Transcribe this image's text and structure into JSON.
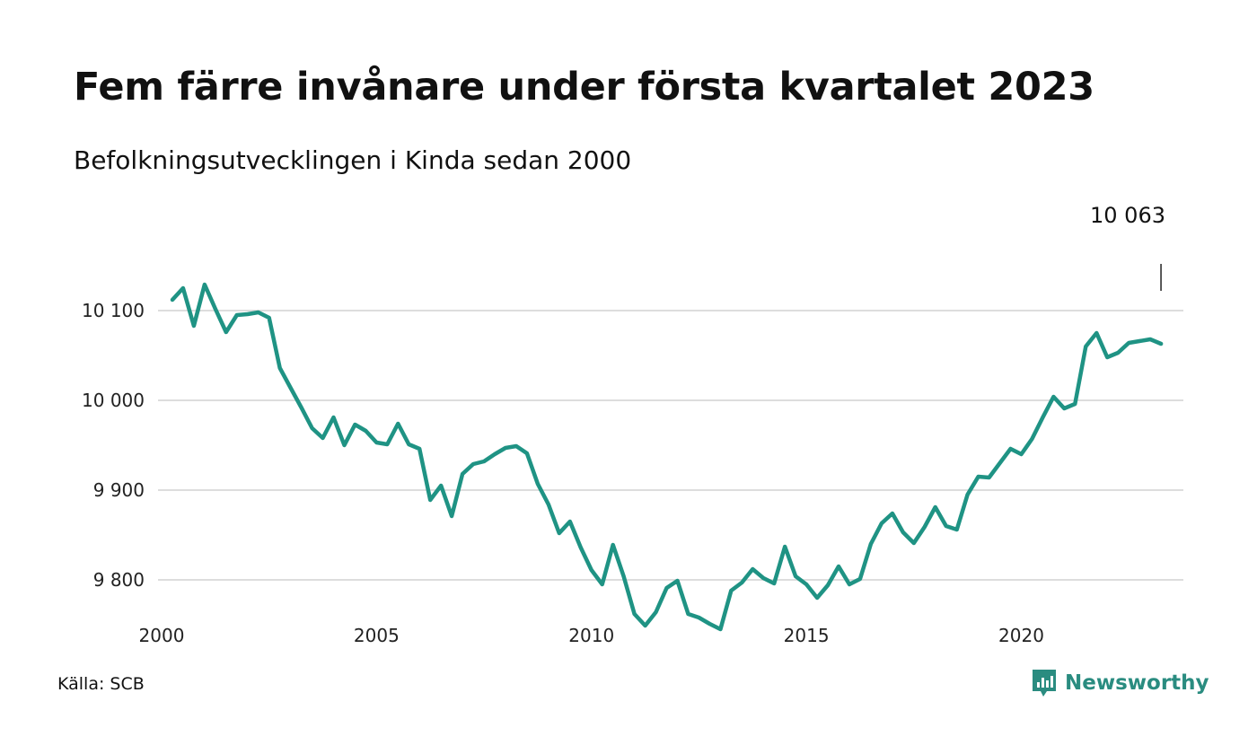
{
  "header": {
    "title": "Fem färre invånare under första kvartalet 2023",
    "subtitle": "Befolkningsutvecklingen i Kinda sedan 2000"
  },
  "footer": {
    "source": "Källa: SCB",
    "brand": "Newsworthy"
  },
  "colors": {
    "line": "#1f9384",
    "grid": "#dddddd",
    "brand": "#2a8c80"
  },
  "chart_data": {
    "type": "line",
    "title": "Fem färre invånare under första kvartalet 2023",
    "subtitle": "Befolkningsutvecklingen i Kinda sedan 2000",
    "xlabel": "",
    "ylabel": "",
    "x_ticks": [
      "2000",
      "2005",
      "2010",
      "2015",
      "2020"
    ],
    "y_ticks": [
      9800,
      9900,
      10000,
      10100
    ],
    "y_tick_labels": [
      "9 800",
      "9 900",
      "10 000",
      "10 100"
    ],
    "ylim": [
      9738,
      10140
    ],
    "xlim": [
      2000,
      2023.75
    ],
    "grid": true,
    "last_value_label": "10 063",
    "series": [
      {
        "x": [
          2000.25,
          2000.5,
          2000.75,
          2001,
          2001.25,
          2001.5,
          2001.75,
          2002,
          2002.25,
          2002.5,
          2002.75,
          2003,
          2003.25,
          2003.5,
          2003.75,
          2004,
          2004.25,
          2004.5,
          2004.75,
          2005,
          2005.25,
          2005.5,
          2005.75,
          2006,
          2006.25,
          2006.5,
          2006.75,
          2007,
          2007.25,
          2007.5,
          2007.75,
          2008,
          2008.25,
          2008.5,
          2008.75,
          2009,
          2009.25,
          2009.5,
          2009.75,
          2010,
          2010.25,
          2010.5,
          2010.75,
          2011,
          2011.25,
          2011.5,
          2011.75,
          2012,
          2012.25,
          2012.5,
          2012.75,
          2013,
          2013.25,
          2013.5,
          2013.75,
          2014,
          2014.25,
          2014.5,
          2014.75,
          2015,
          2015.25,
          2015.5,
          2015.75,
          2016,
          2016.25,
          2016.5,
          2016.75,
          2017,
          2017.25,
          2017.5,
          2017.75,
          2018,
          2018.25,
          2018.5,
          2018.75,
          2019,
          2019.25,
          2019.5,
          2019.75,
          2020,
          2020.25,
          2020.5,
          2020.75,
          2021,
          2021.25,
          2021.5,
          2021.75,
          2022,
          2022.25,
          2022.5,
          2022.75,
          2023,
          2023.25
        ],
        "values": [
          10112,
          10125,
          10083,
          10129,
          10102,
          10076,
          10095,
          10096,
          10098,
          10092,
          10036,
          10014,
          9992,
          9969,
          9958,
          9981,
          9950,
          9973,
          9966,
          9953,
          9951,
          9974,
          9951,
          9946,
          9889,
          9905,
          9871,
          9918,
          9929,
          9932,
          9940,
          9947,
          9949,
          9941,
          9907,
          9884,
          9852,
          9865,
          9836,
          9811,
          9795,
          9839,
          9804,
          9762,
          9749,
          9764,
          9791,
          9799,
          9762,
          9758,
          9751,
          9745,
          9788,
          9797,
          9812,
          9802,
          9796,
          9837,
          9804,
          9795,
          9780,
          9794,
          9815,
          9795,
          9801,
          9840,
          9863,
          9874,
          9853,
          9841,
          9859,
          9881,
          9860,
          9856,
          9895,
          9915,
          9914,
          9930,
          9946,
          9940,
          9957,
          9981,
          10004,
          9991,
          9996,
          10060,
          10075,
          10048,
          10053,
          10064,
          10066,
          10068,
          10063
        ]
      }
    ]
  }
}
